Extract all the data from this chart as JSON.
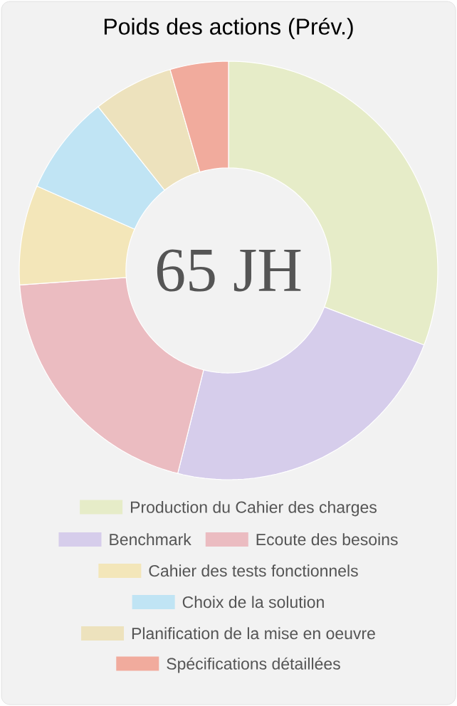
{
  "chart_data": {
    "type": "donut",
    "title": "Poids des actions (Prév.)",
    "categories": [
      "Production du Cahier des charges",
      "Benchmark",
      "Ecoute des besoins",
      "Cahier des tests fonctionnels",
      "Choix de la solution",
      "Planification de la mise en oeuvre",
      "Spécifications détaillées"
    ],
    "values": [
      30.8,
      23.1,
      20.0,
      7.7,
      7.7,
      6.2,
      4.5
    ],
    "colors": [
      "#e6ecc8",
      "#d6cdeb",
      "#ebbcc1",
      "#f3e6b9",
      "#c0e4f4",
      "#ede2bd",
      "#f1ab9d"
    ],
    "annotations": [
      "65 JH"
    ],
    "legend": "bottom"
  }
}
